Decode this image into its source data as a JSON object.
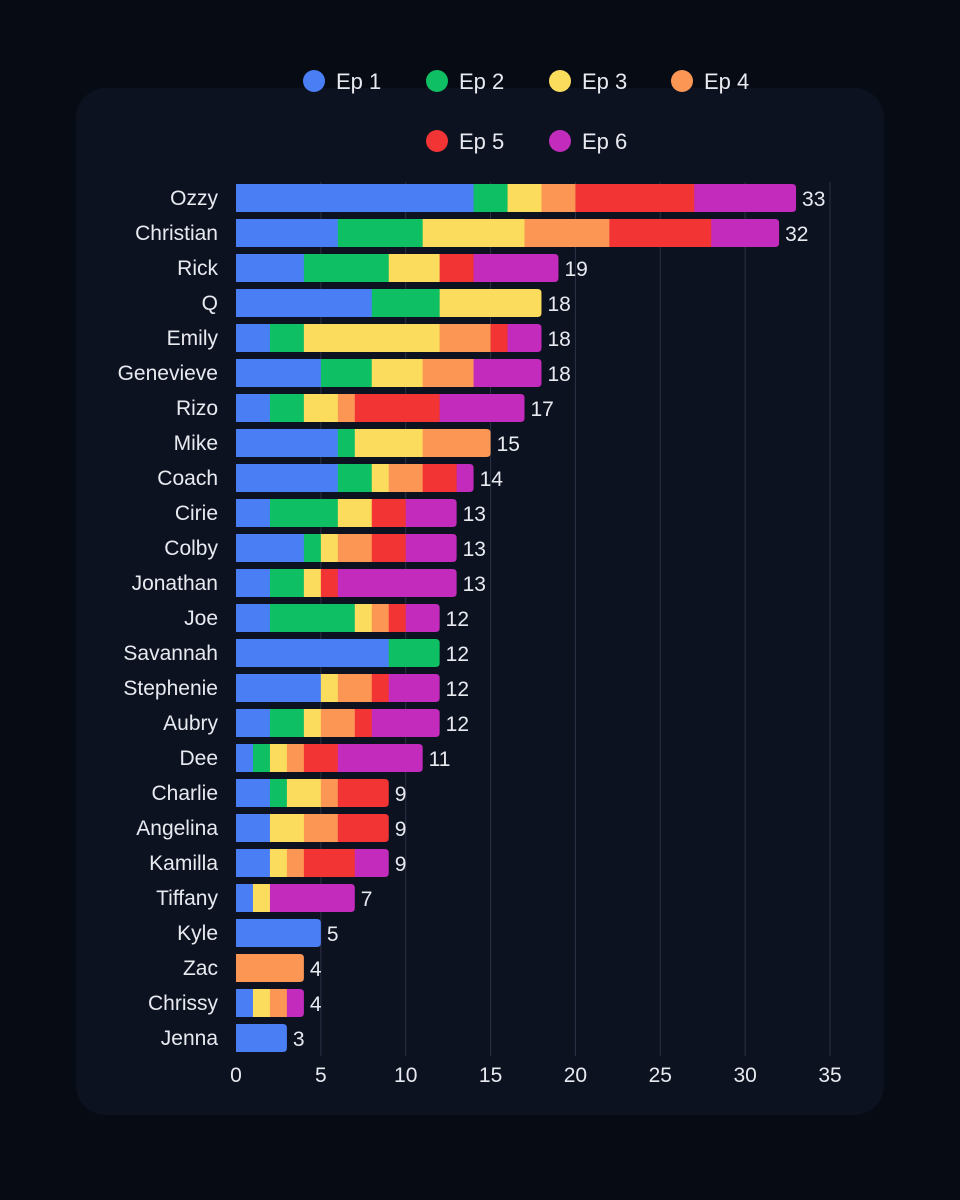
{
  "chart_data": {
    "type": "bar",
    "orientation": "horizontal",
    "stacked": true,
    "title": "",
    "xlabel": "",
    "ylabel": "",
    "xlim": [
      0,
      35
    ],
    "xticks": [
      0,
      5,
      10,
      15,
      20,
      25,
      30,
      35
    ],
    "grid": true,
    "legend_position": "top-center",
    "categories": [
      "Ozzy",
      "Christian",
      "Rick",
      "Q",
      "Emily",
      "Genevieve",
      "Rizo",
      "Mike",
      "Coach",
      "Cirie",
      "Colby",
      "Jonathan",
      "Joe",
      "Savannah",
      "Stephenie",
      "Aubry",
      "Dee",
      "Charlie",
      "Angelina",
      "Kamilla",
      "Tiffany",
      "Kyle",
      "Zac",
      "Chrissy",
      "Jenna"
    ],
    "totals": [
      33,
      32,
      19,
      18,
      18,
      18,
      17,
      15,
      14,
      13,
      13,
      13,
      12,
      12,
      12,
      12,
      11,
      9,
      9,
      9,
      7,
      5,
      4,
      4,
      3
    ],
    "series": [
      {
        "name": "Ep 1",
        "color": "#4a7ef5",
        "values": [
          14,
          6,
          4,
          8,
          2,
          5,
          2,
          6,
          6,
          2,
          4,
          2,
          2,
          9,
          5,
          2,
          1,
          2,
          2,
          2,
          1,
          5,
          0,
          1,
          3
        ]
      },
      {
        "name": "Ep 2",
        "color": "#0fbf63",
        "values": [
          2,
          5,
          5,
          4,
          2,
          3,
          2,
          1,
          2,
          4,
          1,
          2,
          5,
          3,
          0,
          2,
          1,
          1,
          0,
          0,
          0,
          0,
          0,
          0,
          0
        ]
      },
      {
        "name": "Ep 3",
        "color": "#fcdc5c",
        "values": [
          2,
          6,
          3,
          6,
          8,
          3,
          2,
          4,
          1,
          2,
          1,
          1,
          1,
          0,
          1,
          1,
          1,
          2,
          2,
          1,
          1,
          0,
          0,
          1,
          0
        ]
      },
      {
        "name": "Ep 4",
        "color": "#fb9654",
        "values": [
          2,
          5,
          0,
          0,
          3,
          3,
          1,
          4,
          2,
          0,
          2,
          0,
          1,
          0,
          2,
          2,
          1,
          1,
          2,
          1,
          0,
          0,
          4,
          1,
          0
        ]
      },
      {
        "name": "Ep 5",
        "color": "#f23434",
        "values": [
          7,
          6,
          2,
          0,
          1,
          0,
          5,
          0,
          2,
          2,
          2,
          1,
          1,
          0,
          1,
          1,
          2,
          3,
          3,
          3,
          0,
          0,
          0,
          0,
          0
        ]
      },
      {
        "name": "Ep 6",
        "color": "#c22bbc",
        "values": [
          6,
          4,
          5,
          0,
          2,
          4,
          5,
          0,
          1,
          3,
          3,
          7,
          2,
          0,
          3,
          4,
          5,
          0,
          0,
          2,
          5,
          0,
          0,
          1,
          0
        ]
      }
    ]
  }
}
